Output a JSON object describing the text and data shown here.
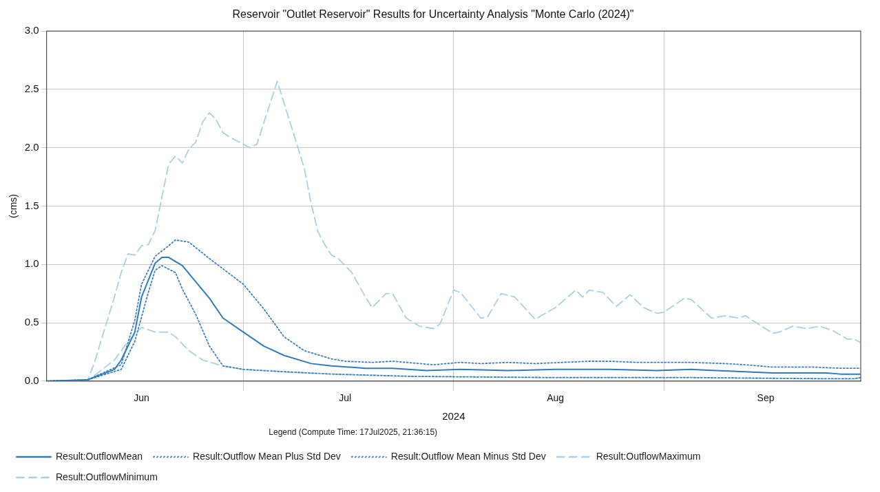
{
  "chart_data": {
    "type": "line",
    "title": "Reservoir \"Outlet Reservoir\" Results for Uncertainty Analysis \"Monte Carlo (2024)\"",
    "xlabel": "2024",
    "ylabel": "(cms)",
    "legend_title": "Legend (Compute Time: 17Jul2025, 21:36:15)",
    "legend": "bottom",
    "grid": true,
    "xlim": [
      "2024-06-02",
      "2024-09-30"
    ],
    "xticks": [
      {
        "value": "2024-06-16",
        "label": "Jun"
      },
      {
        "value": "2024-07-01",
        "label": null
      },
      {
        "value": "2024-07-16",
        "label": "Jul"
      },
      {
        "value": "2024-08-01",
        "label": null
      },
      {
        "value": "2024-08-16",
        "label": "Aug"
      },
      {
        "value": "2024-09-01",
        "label": null
      },
      {
        "value": "2024-09-16",
        "label": "Sep"
      }
    ],
    "ylim": [
      0,
      3
    ],
    "yticks": [
      {
        "value": 0,
        "label": "0.0"
      },
      0.5,
      {
        "value": 1,
        "label": "1.0"
      },
      1.5,
      {
        "value": 2,
        "label": "2.0"
      },
      2.5,
      {
        "value": 3,
        "label": "3.0"
      }
    ],
    "marker": "none",
    "series": [
      {
        "name": "Result:OutflowMean",
        "color": "#2f7bbf",
        "line_style": "solid",
        "x": [
          "2024-06-02",
          "2024-06-08",
          "2024-06-12",
          "2024-06-13",
          "2024-06-15",
          "2024-06-16",
          "2024-06-18",
          "2024-06-19",
          "2024-06-20",
          "2024-06-22",
          "2024-06-26",
          "2024-06-28",
          "2024-07-01",
          "2024-07-04",
          "2024-07-07",
          "2024-07-11",
          "2024-07-14",
          "2024-07-19",
          "2024-07-23",
          "2024-07-28",
          "2024-08-02",
          "2024-08-09",
          "2024-08-16",
          "2024-08-24",
          "2024-08-31",
          "2024-09-05",
          "2024-09-13",
          "2024-09-17",
          "2024-09-25",
          "2024-09-27",
          "2024-09-30"
        ],
        "values": [
          0,
          0.01,
          0.1,
          0.18,
          0.42,
          0.72,
          1.01,
          1.06,
          1.06,
          0.99,
          0.71,
          0.54,
          0.42,
          0.3,
          0.22,
          0.15,
          0.13,
          0.11,
          0.11,
          0.09,
          0.1,
          0.09,
          0.1,
          0.1,
          0.09,
          0.1,
          0.08,
          0.07,
          0.07,
          0.06,
          0.06
        ]
      },
      {
        "name": "Result:Outflow Mean Plus Std Dev",
        "color": "#3b7fc4",
        "line_style": "dotted",
        "x": [
          "2024-06-02",
          "2024-06-08",
          "2024-06-13",
          "2024-06-15",
          "2024-06-16",
          "2024-06-18",
          "2024-06-20",
          "2024-06-21",
          "2024-06-23",
          "2024-06-26",
          "2024-07-01",
          "2024-07-04",
          "2024-07-07",
          "2024-07-10",
          "2024-07-14",
          "2024-07-16",
          "2024-07-20",
          "2024-07-23",
          "2024-07-29",
          "2024-08-02",
          "2024-08-05",
          "2024-08-09",
          "2024-08-13",
          "2024-08-17",
          "2024-08-21",
          "2024-08-24",
          "2024-08-28",
          "2024-09-05",
          "2024-09-10",
          "2024-09-13",
          "2024-09-17",
          "2024-09-23",
          "2024-09-27",
          "2024-09-30"
        ],
        "values": [
          0,
          0.01,
          0.14,
          0.52,
          0.83,
          1.07,
          1.16,
          1.21,
          1.19,
          1.05,
          0.83,
          0.62,
          0.38,
          0.26,
          0.19,
          0.17,
          0.16,
          0.17,
          0.14,
          0.16,
          0.15,
          0.16,
          0.15,
          0.16,
          0.17,
          0.17,
          0.16,
          0.16,
          0.15,
          0.14,
          0.12,
          0.12,
          0.11,
          0.11
        ]
      },
      {
        "name": "Result:Outflow Mean Minus Std Dev",
        "color": "#3b7fc4",
        "line_style": "dotted",
        "x": [
          "2024-06-02",
          "2024-06-08",
          "2024-06-13",
          "2024-06-15",
          "2024-06-17",
          "2024-06-18",
          "2024-06-19",
          "2024-06-21",
          "2024-06-22",
          "2024-06-24",
          "2024-06-26",
          "2024-06-28",
          "2024-07-01",
          "2024-07-07",
          "2024-07-14",
          "2024-07-26",
          "2024-08-16",
          "2024-09-05",
          "2024-09-25",
          "2024-09-29",
          "2024-09-30"
        ],
        "values": [
          0,
          0.01,
          0.1,
          0.34,
          0.76,
          0.95,
          0.99,
          0.93,
          0.79,
          0.57,
          0.3,
          0.13,
          0.1,
          0.08,
          0.06,
          0.04,
          0.03,
          0.03,
          0.02,
          0.02,
          0.03
        ]
      },
      {
        "name": "Result:OutflowMaximum",
        "color": "#a8cfe3",
        "line_style": "dashed",
        "x": [
          "2024-06-02",
          "2024-06-08",
          "2024-06-09",
          "2024-06-12",
          "2024-06-13",
          "2024-06-14",
          "2024-06-15",
          "2024-06-16",
          "2024-06-17",
          "2024-06-18",
          "2024-06-20",
          "2024-06-21",
          "2024-06-22",
          "2024-06-23",
          "2024-06-24",
          "2024-06-25",
          "2024-06-26",
          "2024-06-27",
          "2024-06-28",
          "2024-06-29",
          "2024-07-01",
          "2024-07-02",
          "2024-07-03",
          "2024-07-06",
          "2024-07-09",
          "2024-07-10",
          "2024-07-11",
          "2024-07-12",
          "2024-07-13",
          "2024-07-14",
          "2024-07-15",
          "2024-07-17",
          "2024-07-19",
          "2024-07-20",
          "2024-07-22",
          "2024-07-23",
          "2024-07-25",
          "2024-07-27",
          "2024-07-29",
          "2024-07-30",
          "2024-08-01",
          "2024-08-02",
          "2024-08-05",
          "2024-08-06",
          "2024-08-08",
          "2024-08-10",
          "2024-08-13",
          "2024-08-16",
          "2024-08-19",
          "2024-08-20",
          "2024-08-21",
          "2024-08-23",
          "2024-08-25",
          "2024-08-27",
          "2024-08-29",
          "2024-08-31",
          "2024-09-01",
          "2024-09-04",
          "2024-09-05",
          "2024-09-08",
          "2024-09-10",
          "2024-09-12",
          "2024-09-13",
          "2024-09-17",
          "2024-09-18",
          "2024-09-20",
          "2024-09-22",
          "2024-09-24",
          "2024-09-26",
          "2024-09-28",
          "2024-09-29",
          "2024-09-30"
        ],
        "values": [
          0,
          0,
          0.15,
          0.72,
          0.93,
          1.09,
          1.08,
          1.16,
          1.17,
          1.29,
          1.86,
          1.93,
          1.87,
          1.99,
          2.05,
          2.22,
          2.3,
          2.24,
          2.13,
          2.09,
          2.03,
          2,
          2.03,
          2.57,
          2.01,
          1.82,
          1.52,
          1.28,
          1.17,
          1.08,
          1.05,
          0.93,
          0.72,
          0.63,
          0.75,
          0.75,
          0.54,
          0.47,
          0.45,
          0.49,
          0.78,
          0.76,
          0.54,
          0.55,
          0.75,
          0.72,
          0.53,
          0.63,
          0.78,
          0.72,
          0.78,
          0.76,
          0.64,
          0.74,
          0.63,
          0.58,
          0.59,
          0.71,
          0.7,
          0.54,
          0.56,
          0.54,
          0.56,
          0.41,
          0.42,
          0.47,
          0.45,
          0.47,
          0.43,
          0.36,
          0.36,
          0.33
        ]
      },
      {
        "name": "Result:OutflowMinimum",
        "color": "#a8cfe3",
        "line_style": "dashed",
        "x": [
          "2024-06-02",
          "2024-06-08",
          "2024-06-12",
          "2024-06-14",
          "2024-06-16",
          "2024-06-18",
          "2024-06-20",
          "2024-06-21",
          "2024-06-23",
          "2024-06-25",
          "2024-06-28",
          "2024-07-01",
          "2024-07-07",
          "2024-07-14",
          "2024-07-26",
          "2024-08-16",
          "2024-09-05",
          "2024-09-25",
          "2024-09-29",
          "2024-09-30"
        ],
        "values": [
          0,
          0,
          0.18,
          0.34,
          0.46,
          0.42,
          0.42,
          0.38,
          0.26,
          0.18,
          0.13,
          0.1,
          0.08,
          0.06,
          0.04,
          0.03,
          0.03,
          0.02,
          0.02,
          0.03
        ]
      }
    ]
  }
}
